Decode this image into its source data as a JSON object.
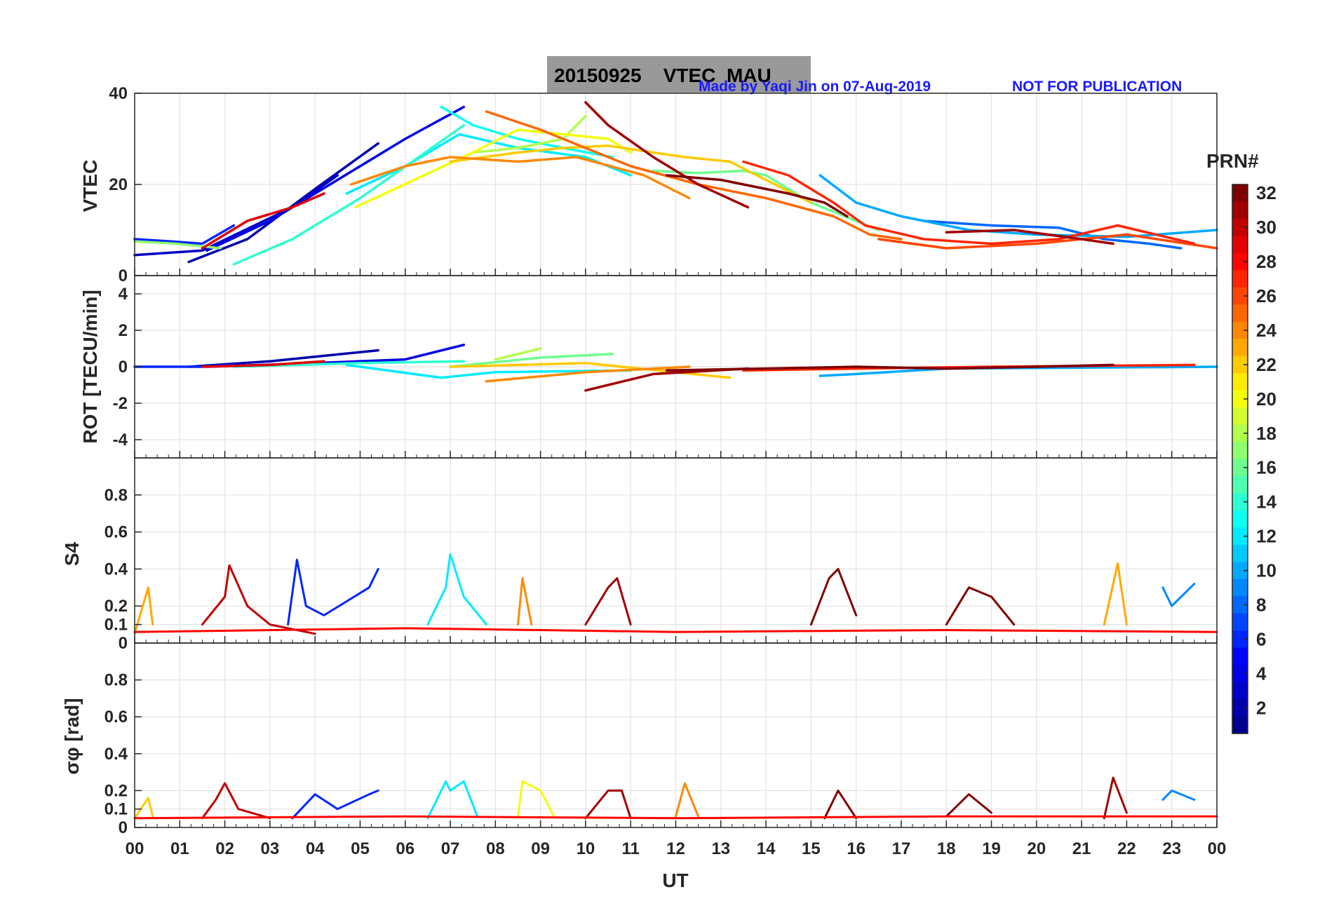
{
  "header": {
    "date": "20150925",
    "product": "VTEC",
    "station": "MAU",
    "credit": "Made by Yaqi Jin on 07-Aug-2019",
    "notice": "NOT FOR PUBLICATION"
  },
  "colorbar": {
    "label": "PRN#",
    "ticks": [
      "2",
      "4",
      "6",
      "8",
      "10",
      "12",
      "14",
      "16",
      "18",
      "20",
      "22",
      "24",
      "26",
      "28",
      "30",
      "32"
    ],
    "range": [
      1,
      32
    ],
    "palette": [
      "#00008f",
      "#0000ff",
      "#0080ff",
      "#00ffff",
      "#80ff80",
      "#ffff00",
      "#ff8000",
      "#ff0000",
      "#800000"
    ]
  },
  "chart_data": [
    {
      "type": "line",
      "panel": "vtec",
      "ylabel": "VTEC",
      "ylim": [
        0,
        40
      ],
      "yticks": [
        "0",
        "20",
        "40"
      ],
      "xlim": [
        0,
        24
      ],
      "series": [
        {
          "prn": 2,
          "x": [
            1.2,
            2.5,
            4,
            5.4
          ],
          "y": [
            3,
            8,
            19,
            29
          ]
        },
        {
          "prn": 3,
          "x": [
            0,
            1.5,
            3.5,
            4.5
          ],
          "y": [
            4.5,
            5.5,
            15,
            22
          ]
        },
        {
          "prn": 4,
          "x": [
            1.6,
            3,
            4.5,
            6,
            7.3
          ],
          "y": [
            5.5,
            12,
            21,
            30,
            37
          ]
        },
        {
          "prn": 6,
          "x": [
            0,
            0.8,
            1.5,
            2.2
          ],
          "y": [
            8,
            7.5,
            7,
            11
          ]
        },
        {
          "prn": 8,
          "x": [
            17.5,
            19,
            20.5,
            21.5,
            22.5,
            23.2
          ],
          "y": [
            12,
            11,
            10.5,
            8,
            7,
            6
          ]
        },
        {
          "prn": 10,
          "x": [
            15.2,
            16,
            17,
            18.5,
            20,
            22,
            24
          ],
          "y": [
            22,
            16,
            13,
            10,
            9,
            8.5,
            10
          ]
        },
        {
          "prn": 12,
          "x": [
            4.7,
            6,
            7.2,
            8.5,
            10,
            11
          ],
          "y": [
            18,
            24,
            31,
            28,
            26,
            22
          ]
        },
        {
          "prn": 13,
          "x": [
            6.8,
            7.5,
            8.5,
            9.5,
            10.6
          ],
          "y": [
            37,
            33,
            30,
            28,
            26
          ]
        },
        {
          "prn": 14,
          "x": [
            2.2,
            3.5,
            5,
            6.3,
            7.3
          ],
          "y": [
            2.5,
            8,
            17,
            26,
            33
          ]
        },
        {
          "prn": 16,
          "x": [
            11.5,
            12.5,
            13.5,
            14,
            15,
            16.5
          ],
          "y": [
            23,
            22.5,
            23,
            22,
            16,
            10
          ]
        },
        {
          "prn": 17,
          "x": [
            0,
            0.9,
            1.9
          ],
          "y": [
            7.5,
            7,
            6
          ]
        },
        {
          "prn": 18,
          "x": [
            7.5,
            8.5,
            9.5,
            10
          ],
          "y": [
            27,
            28,
            30,
            35
          ]
        },
        {
          "prn": 20,
          "x": [
            4.9,
            6.2,
            7.5,
            8.5,
            10.5,
            11
          ],
          "y": [
            15,
            21,
            27,
            32,
            30,
            27
          ]
        },
        {
          "prn": 22,
          "x": [
            7,
            8.5,
            9.5,
            10.5,
            11.5,
            12.2,
            13.2,
            15
          ],
          "y": [
            25,
            27,
            28,
            28.5,
            27,
            26,
            25,
            16
          ]
        },
        {
          "prn": 24,
          "x": [
            4.8,
            6,
            7,
            8.5,
            9.8,
            11.3,
            12.3
          ],
          "y": [
            20,
            24,
            26,
            25,
            26,
            22,
            17
          ]
        },
        {
          "prn": 25,
          "x": [
            7.8,
            9,
            10,
            11,
            12.5,
            14,
            15.5,
            16.3,
            17
          ],
          "y": [
            36,
            32,
            28,
            24,
            20,
            17,
            13,
            9,
            8
          ]
        },
        {
          "prn": 26,
          "x": [
            16.5,
            18,
            20,
            22,
            24
          ],
          "y": [
            8,
            6,
            7,
            9,
            6
          ]
        },
        {
          "prn": 27,
          "x": [
            13.5,
            14.5,
            15.5,
            16.2,
            17.5,
            19,
            20.5,
            21.8,
            23.5
          ],
          "y": [
            25,
            22,
            16,
            11,
            8,
            7,
            8,
            11,
            7
          ]
        },
        {
          "prn": 29,
          "x": [
            1.5,
            2.5,
            3.5,
            4.2
          ],
          "y": [
            6,
            12,
            15,
            18
          ]
        },
        {
          "prn": 31,
          "x": [
            10,
            10.5,
            11.5,
            12.5,
            13.6
          ],
          "y": [
            38,
            33,
            26,
            20,
            15
          ]
        },
        {
          "prn": 32,
          "x": [
            11.8,
            13,
            14.5,
            15.3,
            15.8
          ],
          "y": [
            22,
            21,
            18,
            16,
            13
          ]
        },
        {
          "prn": 31,
          "x": [
            18,
            19.5,
            21,
            21.7
          ],
          "y": [
            9.5,
            10,
            8,
            7
          ]
        }
      ]
    },
    {
      "type": "line",
      "panel": "rot",
      "ylabel": "ROT [TECU/min]",
      "ylim": [
        -5,
        5
      ],
      "yticks": [
        "-4",
        "-2",
        "0",
        "2",
        "4"
      ],
      "xlim": [
        0,
        24
      ],
      "series": [
        {
          "prn": 2,
          "x": [
            1.2,
            3,
            5.4
          ],
          "y": [
            0,
            0.3,
            0.9
          ]
        },
        {
          "prn": 4,
          "x": [
            1.6,
            4,
            6,
            7.3
          ],
          "y": [
            0,
            0.2,
            0.4,
            1.2
          ]
        },
        {
          "prn": 6,
          "x": [
            0,
            1.5,
            2.2
          ],
          "y": [
            0,
            0,
            0.1
          ]
        },
        {
          "prn": 10,
          "x": [
            15.2,
            16,
            18,
            24
          ],
          "y": [
            -0.5,
            -0.4,
            -0.1,
            0
          ]
        },
        {
          "prn": 12,
          "x": [
            4.7,
            6.8,
            8,
            11
          ],
          "y": [
            0.1,
            -0.6,
            -0.3,
            -0.2
          ]
        },
        {
          "prn": 14,
          "x": [
            2.2,
            5,
            7.3
          ],
          "y": [
            0,
            0.2,
            0.3
          ]
        },
        {
          "prn": 16,
          "x": [
            7,
            9,
            10.6
          ],
          "y": [
            0,
            0.5,
            0.7
          ]
        },
        {
          "prn": 18,
          "x": [
            8,
            9
          ],
          "y": [
            0.4,
            1.0
          ]
        },
        {
          "prn": 22,
          "x": [
            7,
            10,
            13.2
          ],
          "y": [
            0,
            0.2,
            -0.6
          ]
        },
        {
          "prn": 24,
          "x": [
            7.8,
            10,
            12.3
          ],
          "y": [
            -0.8,
            -0.3,
            0
          ]
        },
        {
          "prn": 27,
          "x": [
            13.5,
            16,
            19,
            23.5
          ],
          "y": [
            -0.2,
            -0.1,
            0,
            0.1
          ]
        },
        {
          "prn": 31,
          "x": [
            10,
            11.5,
            13.6
          ],
          "y": [
            -1.3,
            -0.4,
            -0.1
          ]
        },
        {
          "prn": 32,
          "x": [
            11.8,
            14,
            16,
            18,
            20,
            21.7
          ],
          "y": [
            -0.2,
            -0.1,
            0,
            -0.1,
            0,
            0.1
          ]
        },
        {
          "prn": 29,
          "x": [
            1.5,
            3,
            4.2
          ],
          "y": [
            0,
            0.1,
            0.3
          ]
        }
      ]
    },
    {
      "type": "line",
      "panel": "s4",
      "ylabel": "S4",
      "ylim": [
        0,
        1
      ],
      "yticks": [
        "0",
        "0.1",
        "0.2",
        "0.4",
        "0.6",
        "0.8"
      ],
      "xlim": [
        0,
        24
      ],
      "series": [
        {
          "prn": 30,
          "x": [
            1.5,
            2,
            2.1,
            2.5,
            3,
            4
          ],
          "y": [
            0.1,
            0.25,
            0.42,
            0.2,
            0.1,
            0.05
          ]
        },
        {
          "prn": 6,
          "x": [
            3.4,
            3.6,
            3.8,
            4.2,
            5.2,
            5.4
          ],
          "y": [
            0.1,
            0.45,
            0.2,
            0.15,
            0.3,
            0.4
          ]
        },
        {
          "prn": 12,
          "x": [
            6.5,
            6.9,
            7,
            7.3,
            7.8
          ],
          "y": [
            0.1,
            0.3,
            0.48,
            0.25,
            0.1
          ]
        },
        {
          "prn": 31,
          "x": [
            10,
            10.5,
            10.7,
            11
          ],
          "y": [
            0.1,
            0.3,
            0.35,
            0.1
          ]
        },
        {
          "prn": 32,
          "x": [
            15,
            15.4,
            15.6,
            16
          ],
          "y": [
            0.1,
            0.35,
            0.4,
            0.15
          ]
        },
        {
          "prn": 32,
          "x": [
            18,
            18.5,
            19,
            19.5
          ],
          "y": [
            0.1,
            0.3,
            0.25,
            0.1
          ]
        },
        {
          "prn": 23,
          "x": [
            0,
            0.3,
            0.4
          ],
          "y": [
            0.05,
            0.3,
            0.1
          ]
        },
        {
          "prn": 23,
          "x": [
            21.5,
            21.8,
            22
          ],
          "y": [
            0.1,
            0.43,
            0.1
          ]
        },
        {
          "prn": 9,
          "x": [
            22.8,
            23,
            23.5
          ],
          "y": [
            0.3,
            0.2,
            0.32
          ]
        },
        {
          "prn": 24,
          "x": [
            8.5,
            8.6,
            8.8
          ],
          "y": [
            0.1,
            0.35,
            0.1
          ]
        },
        {
          "prn": 28,
          "x": [
            0,
            6,
            12,
            18,
            24
          ],
          "y": [
            0.06,
            0.08,
            0.06,
            0.07,
            0.06
          ]
        }
      ]
    },
    {
      "type": "line",
      "panel": "sigma_phi",
      "ylabel": "σφ [rad]",
      "ylim": [
        0,
        1
      ],
      "yticks": [
        "0",
        "0.1",
        "0.2",
        "0.4",
        "0.6",
        "0.8"
      ],
      "xlim": [
        0,
        24
      ],
      "series": [
        {
          "prn": 30,
          "x": [
            1.5,
            1.8,
            2,
            2.3,
            3
          ],
          "y": [
            0.05,
            0.15,
            0.24,
            0.1,
            0.05
          ]
        },
        {
          "prn": 6,
          "x": [
            3.5,
            4,
            4.5,
            5.2,
            5.4
          ],
          "y": [
            0.05,
            0.18,
            0.1,
            0.18,
            0.2
          ]
        },
        {
          "prn": 12,
          "x": [
            6.5,
            6.9,
            7,
            7.3,
            7.6
          ],
          "y": [
            0.05,
            0.25,
            0.2,
            0.25,
            0.06
          ]
        },
        {
          "prn": 20,
          "x": [
            8.5,
            8.6,
            9,
            9.3
          ],
          "y": [
            0.06,
            0.25,
            0.2,
            0.06
          ]
        },
        {
          "prn": 31,
          "x": [
            10,
            10.5,
            10.8,
            11
          ],
          "y": [
            0.05,
            0.2,
            0.2,
            0.05
          ]
        },
        {
          "prn": 24,
          "x": [
            12,
            12.2,
            12.5
          ],
          "y": [
            0.06,
            0.24,
            0.06
          ]
        },
        {
          "prn": 32,
          "x": [
            15.3,
            15.6,
            16
          ],
          "y": [
            0.05,
            0.2,
            0.05
          ]
        },
        {
          "prn": 32,
          "x": [
            18,
            18.5,
            19
          ],
          "y": [
            0.06,
            0.18,
            0.08
          ]
        },
        {
          "prn": 31,
          "x": [
            21.5,
            21.7,
            22
          ],
          "y": [
            0.05,
            0.27,
            0.08
          ]
        },
        {
          "prn": 9,
          "x": [
            22.8,
            23,
            23.5
          ],
          "y": [
            0.15,
            0.2,
            0.15
          ]
        },
        {
          "prn": 22,
          "x": [
            0,
            0.3,
            0.4
          ],
          "y": [
            0.05,
            0.16,
            0.06
          ]
        },
        {
          "prn": 28,
          "x": [
            0,
            6,
            12,
            18,
            24
          ],
          "y": [
            0.05,
            0.06,
            0.05,
            0.06,
            0.06
          ]
        }
      ]
    }
  ],
  "xaxis": {
    "label": "UT",
    "ticks": [
      "00",
      "01",
      "02",
      "03",
      "04",
      "05",
      "06",
      "07",
      "08",
      "09",
      "10",
      "11",
      "12",
      "13",
      "14",
      "15",
      "16",
      "17",
      "18",
      "19",
      "20",
      "21",
      "22",
      "23",
      "00"
    ]
  }
}
